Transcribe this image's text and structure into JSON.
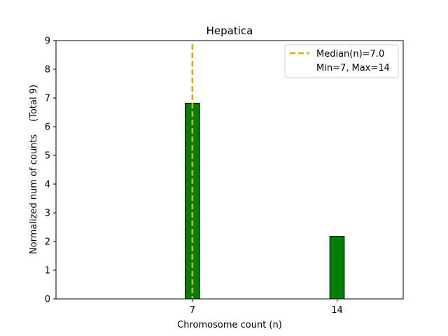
{
  "chart_data": {
    "type": "bar",
    "title": "Hepatica",
    "xlabel": "Chromosome count (n)",
    "ylabel_line1": "Normalized num of counts",
    "ylabel_line2": "(Total 9)",
    "categories": [
      "7",
      "14"
    ],
    "x": [
      7,
      14
    ],
    "values": [
      6.82,
      2.18
    ],
    "xlim": [
      0.4,
      17.2
    ],
    "ylim": [
      0,
      9
    ],
    "yticks": [
      0,
      1,
      2,
      3,
      4,
      5,
      6,
      7,
      8,
      9
    ],
    "xticks": [
      7,
      14
    ],
    "bar_width_units": 0.7,
    "median": 7.0,
    "legend": {
      "placement": "top-right",
      "median_label": "Median(n)=7.0",
      "minmax_label": "Min=7, Max=14"
    },
    "colors": {
      "bar": "#008000",
      "bar_edge": "#000000",
      "median_line": "#e6a800"
    }
  }
}
